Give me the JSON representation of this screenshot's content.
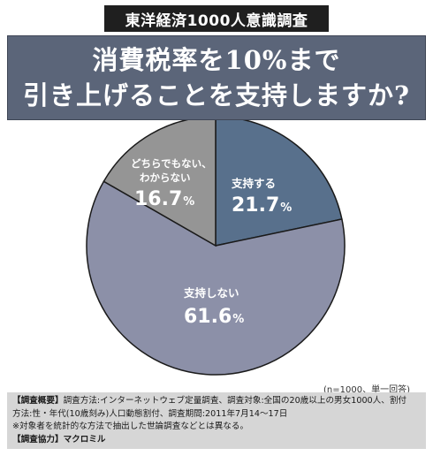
{
  "header_tag": "東洋経済1000人意識調査",
  "title": {
    "line1": "消費税率を10%まで",
    "line2": "引き上げることを支持しますか?"
  },
  "colors": {
    "support": "#58708c",
    "not_support": "#8c90a8",
    "neither": "#959595",
    "title_bg": "#5b6579"
  },
  "chart_data": {
    "type": "pie",
    "slices": [
      {
        "label": "支持する",
        "value": 21.7,
        "display": "21.7",
        "unit": "%"
      },
      {
        "label": "支持しない",
        "value": 61.6,
        "display": "61.6",
        "unit": "%"
      },
      {
        "label_lines": [
          "どちらでもない、",
          "わからない"
        ],
        "value": 16.7,
        "display": "16.7",
        "unit": "%"
      }
    ]
  },
  "note": "(n=1000、単一回答)",
  "footer": {
    "survey_tag": "【調査概要】",
    "survey_line1": "調査方法:インターネットウェブ定量調査、調査対象:全国の20歳以上の男女1000人、割付",
    "survey_line2": "方法:性・年代(10歳刻み)人口動態割付、調査期間:2011年7月14～17日",
    "survey_line3": "※対象者を統計的な方法で抽出した世論調査などとは異なる。",
    "cooperation_tag": "【調査協力】",
    "cooperation_value": "マクロミル"
  }
}
